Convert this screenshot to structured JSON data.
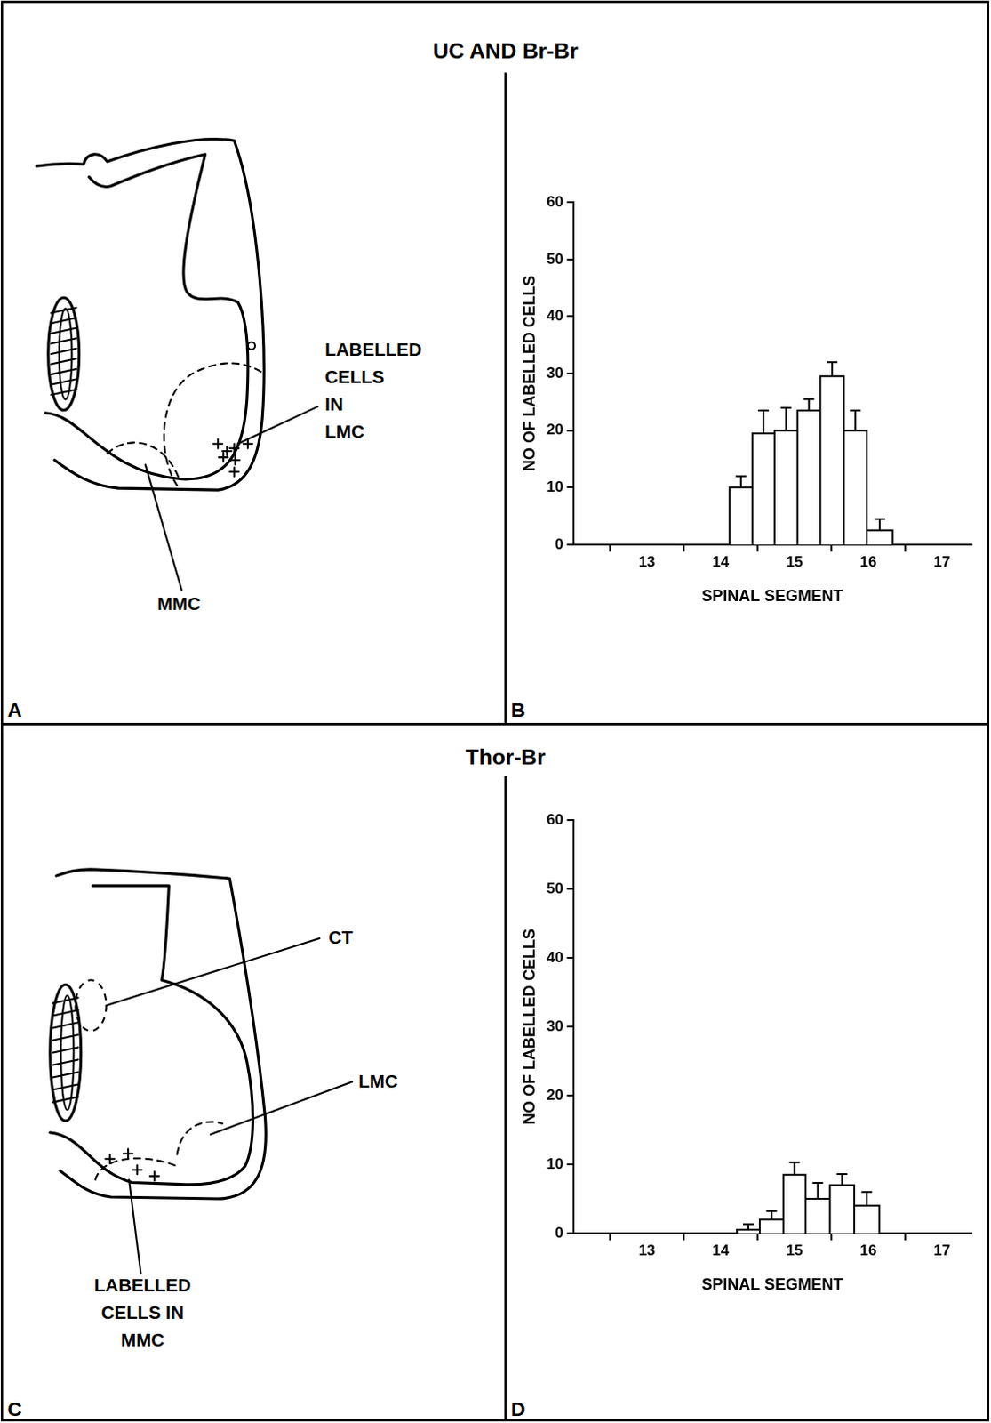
{
  "titles": [
    "UC AND Br-Br",
    "Thor-Br"
  ],
  "panel_letters": [
    "A",
    "B",
    "C",
    "D"
  ],
  "diagrams": [
    {
      "labels": [
        {
          "lines": [
            "LABELLED",
            "CELLS",
            "IN",
            "LMC"
          ]
        },
        {
          "lines": [
            "MMC"
          ]
        }
      ]
    },
    {
      "labels": [
        {
          "lines": [
            "CT"
          ]
        },
        {
          "lines": [
            "LMC"
          ]
        },
        {
          "lines": [
            "LABELLED",
            "CELLS IN",
            "MMC"
          ]
        }
      ]
    }
  ],
  "chart_data": [
    {
      "type": "histogram",
      "x_label": "SPINAL SEGMENT",
      "y_label": "NO OF LABELLED CELLS",
      "bins": [
        14.12,
        14.43,
        14.73,
        15.04,
        15.35,
        15.67,
        15.98,
        16.33
      ],
      "values": [
        10,
        19.5,
        20,
        23.5,
        29.5,
        20,
        2.5
      ],
      "errors": [
        2,
        4,
        4,
        2,
        2.5,
        3.5,
        2
      ],
      "color": "#ffffff",
      "xlim": [
        12,
        17.4
      ],
      "xticks": [
        13,
        14,
        15,
        16,
        17
      ],
      "ylim": [
        0,
        60
      ],
      "yticks": [
        0,
        10,
        20,
        30,
        40,
        50,
        60
      ],
      "grid": false
    },
    {
      "type": "histogram",
      "x_label": "SPINAL SEGMENT",
      "y_label": "NO OF LABELLED CELLS",
      "bins": [
        14.22,
        14.53,
        14.85,
        15.15,
        15.48,
        15.81,
        16.15
      ],
      "values": [
        0.5,
        2,
        8.5,
        5,
        7,
        4
      ],
      "errors": [
        0.8,
        1.2,
        1.8,
        2.3,
        1.6,
        2
      ],
      "color": "#ffffff",
      "xlim": [
        12,
        17.4
      ],
      "xticks": [
        13,
        14,
        15,
        16,
        17
      ],
      "ylim": [
        0,
        60
      ],
      "yticks": [
        0,
        10,
        20,
        30,
        40,
        50,
        60
      ],
      "grid": false
    }
  ]
}
